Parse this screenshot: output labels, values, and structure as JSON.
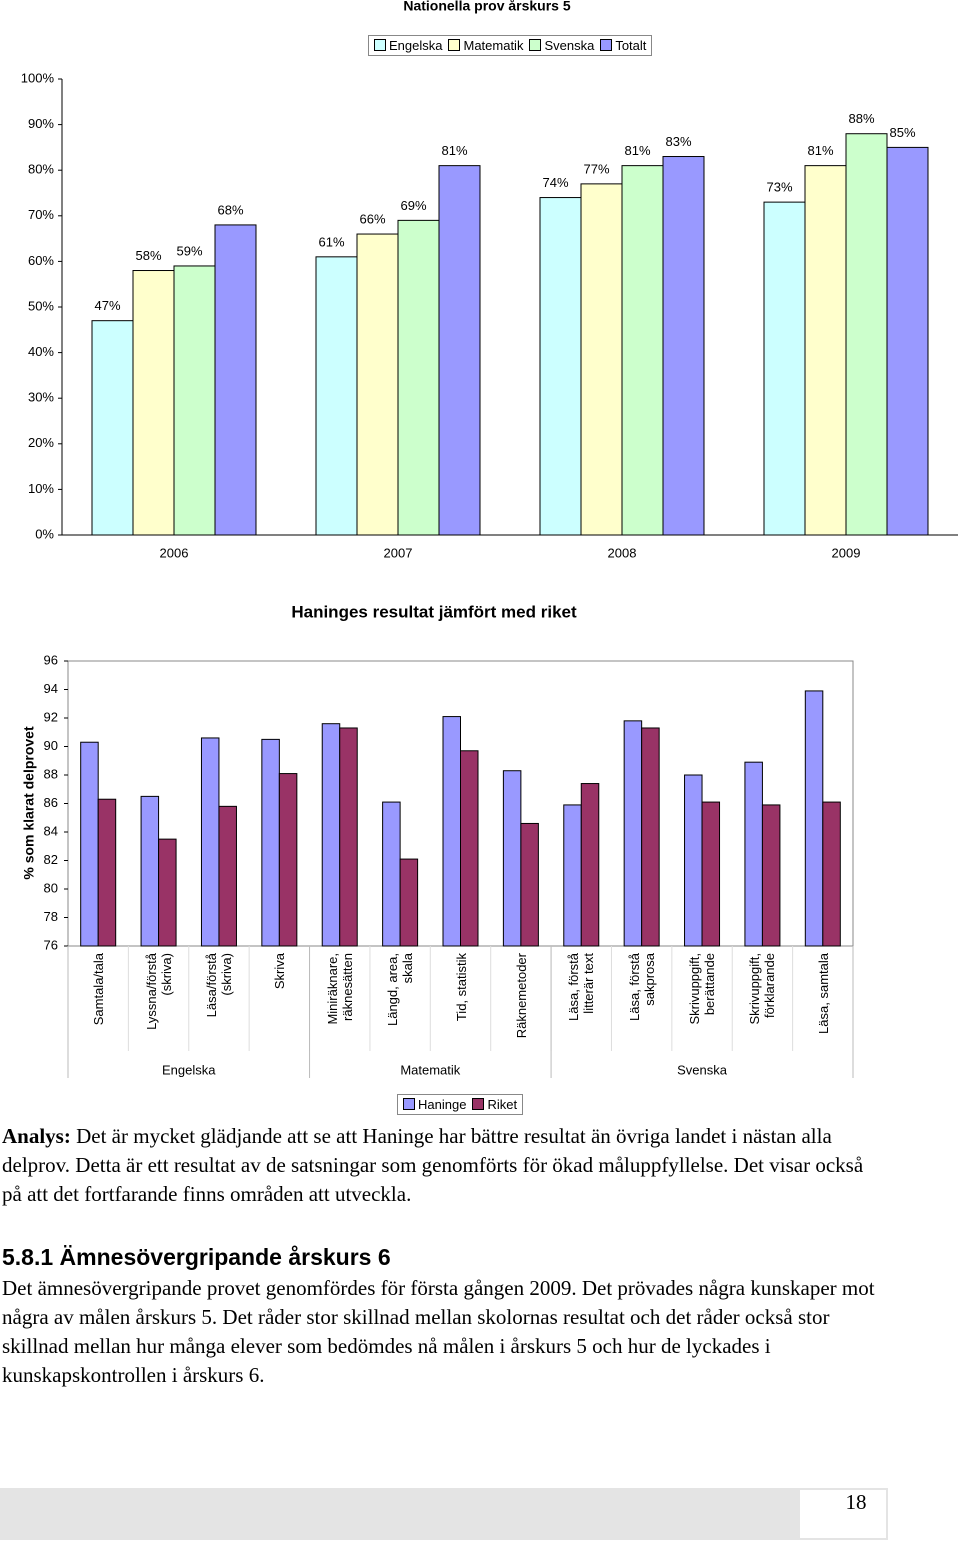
{
  "chart_data": [
    {
      "type": "bar",
      "title": "Nationella prov årskurs 5",
      "categories": [
        "2006",
        "2007",
        "2008",
        "2009"
      ],
      "series": [
        {
          "name": "Engelska",
          "color": "#ccffff",
          "values": [
            47,
            61,
            74,
            73
          ],
          "value_labels": [
            "47%",
            "61%",
            "74%",
            "73%"
          ]
        },
        {
          "name": "Matematik",
          "color": "#ffffcc",
          "values": [
            58,
            66,
            77,
            81
          ],
          "value_labels": [
            "58%",
            "66%",
            "77%",
            "81%"
          ]
        },
        {
          "name": "Svenska",
          "color": "#ccffcc",
          "values": [
            59,
            69,
            81,
            88
          ],
          "value_labels": [
            "59%",
            "69%",
            "81%",
            "88%"
          ]
        },
        {
          "name": "Totalt",
          "color": "#9999ff",
          "values": [
            68,
            81,
            83,
            85
          ],
          "value_labels": [
            "68%",
            "81%",
            "83%",
            "85%"
          ]
        }
      ],
      "ylim": [
        0,
        100
      ],
      "yticks": [
        {
          "value": 0,
          "label": "0%"
        },
        {
          "value": 10,
          "label": "10%"
        },
        {
          "value": 20,
          "label": "20%"
        },
        {
          "value": 30,
          "label": "30%"
        },
        {
          "value": 40,
          "label": "40%"
        },
        {
          "value": 50,
          "label": "50%"
        },
        {
          "value": 60,
          "label": "60%"
        },
        {
          "value": 70,
          "label": "70%"
        },
        {
          "value": 80,
          "label": "80%"
        },
        {
          "value": 90,
          "label": "90%"
        },
        {
          "value": 100,
          "label": "100%"
        }
      ],
      "legend": "top"
    },
    {
      "type": "bar",
      "title": "Haninges resultat jämfört med riket",
      "ylabel": "% som klarat delprovet",
      "categories": [
        "Samtala/tala",
        "Lyssna/förstå (skriva)",
        "Läsa/förstå (skriva)",
        "Skriva",
        "Miniräknare, räknesätten",
        "Längd, area, skala",
        "Tid, statistik",
        "Räknemetoder",
        "Läsa, förstå litterär text",
        "Läsa, förstå sakprosa",
        "Skrivuppgift, berättande",
        "Skrivuppgift, förklarande",
        "Läsa, samtala"
      ],
      "groups": [
        "Engelska",
        "Matematik",
        "Svenska"
      ],
      "series": [
        {
          "name": "Haninge",
          "color": "#9999ff",
          "values": [
            90.3,
            86.5,
            90.6,
            90.5,
            91.6,
            86.1,
            92.1,
            88.3,
            85.9,
            91.8,
            88.0,
            88.9,
            93.9
          ]
        },
        {
          "name": "Riket",
          "color": "#993366",
          "values": [
            86.3,
            83.5,
            85.8,
            88.1,
            91.3,
            82.1,
            89.7,
            84.6,
            87.4,
            91.3,
            86.1,
            85.9,
            86.1
          ]
        }
      ],
      "ylim": [
        76,
        96
      ],
      "yticks": [
        76,
        78,
        80,
        82,
        84,
        86,
        88,
        90,
        92,
        94,
        96
      ],
      "legend": "bottom"
    }
  ],
  "analysis": {
    "label": "Analys:",
    "text": "Det är mycket glädjande att se att Haninge har bättre resultat än övriga landet i nästan alla delprov. Detta är ett resultat av de satsningar som genomförts för ökad måluppfyllelse. Det visar också på att det fortfarande finns områden att utveckla."
  },
  "section": {
    "number": "5.8.1",
    "title": "Ämnesövergripande årskurs 6",
    "text": "Det ämnesövergripande provet genomfördes för första gången 2009. Det prövades några kunskaper mot några av målen årskurs 5. Det råder stor skillnad mellan skolornas resultat och det råder också stor skillnad mellan hur många elever som bedömdes nå målen i årskurs 5 och hur de lyckades i kunskapskontrollen i årskurs 6."
  },
  "footer": {
    "page_number": "18"
  }
}
